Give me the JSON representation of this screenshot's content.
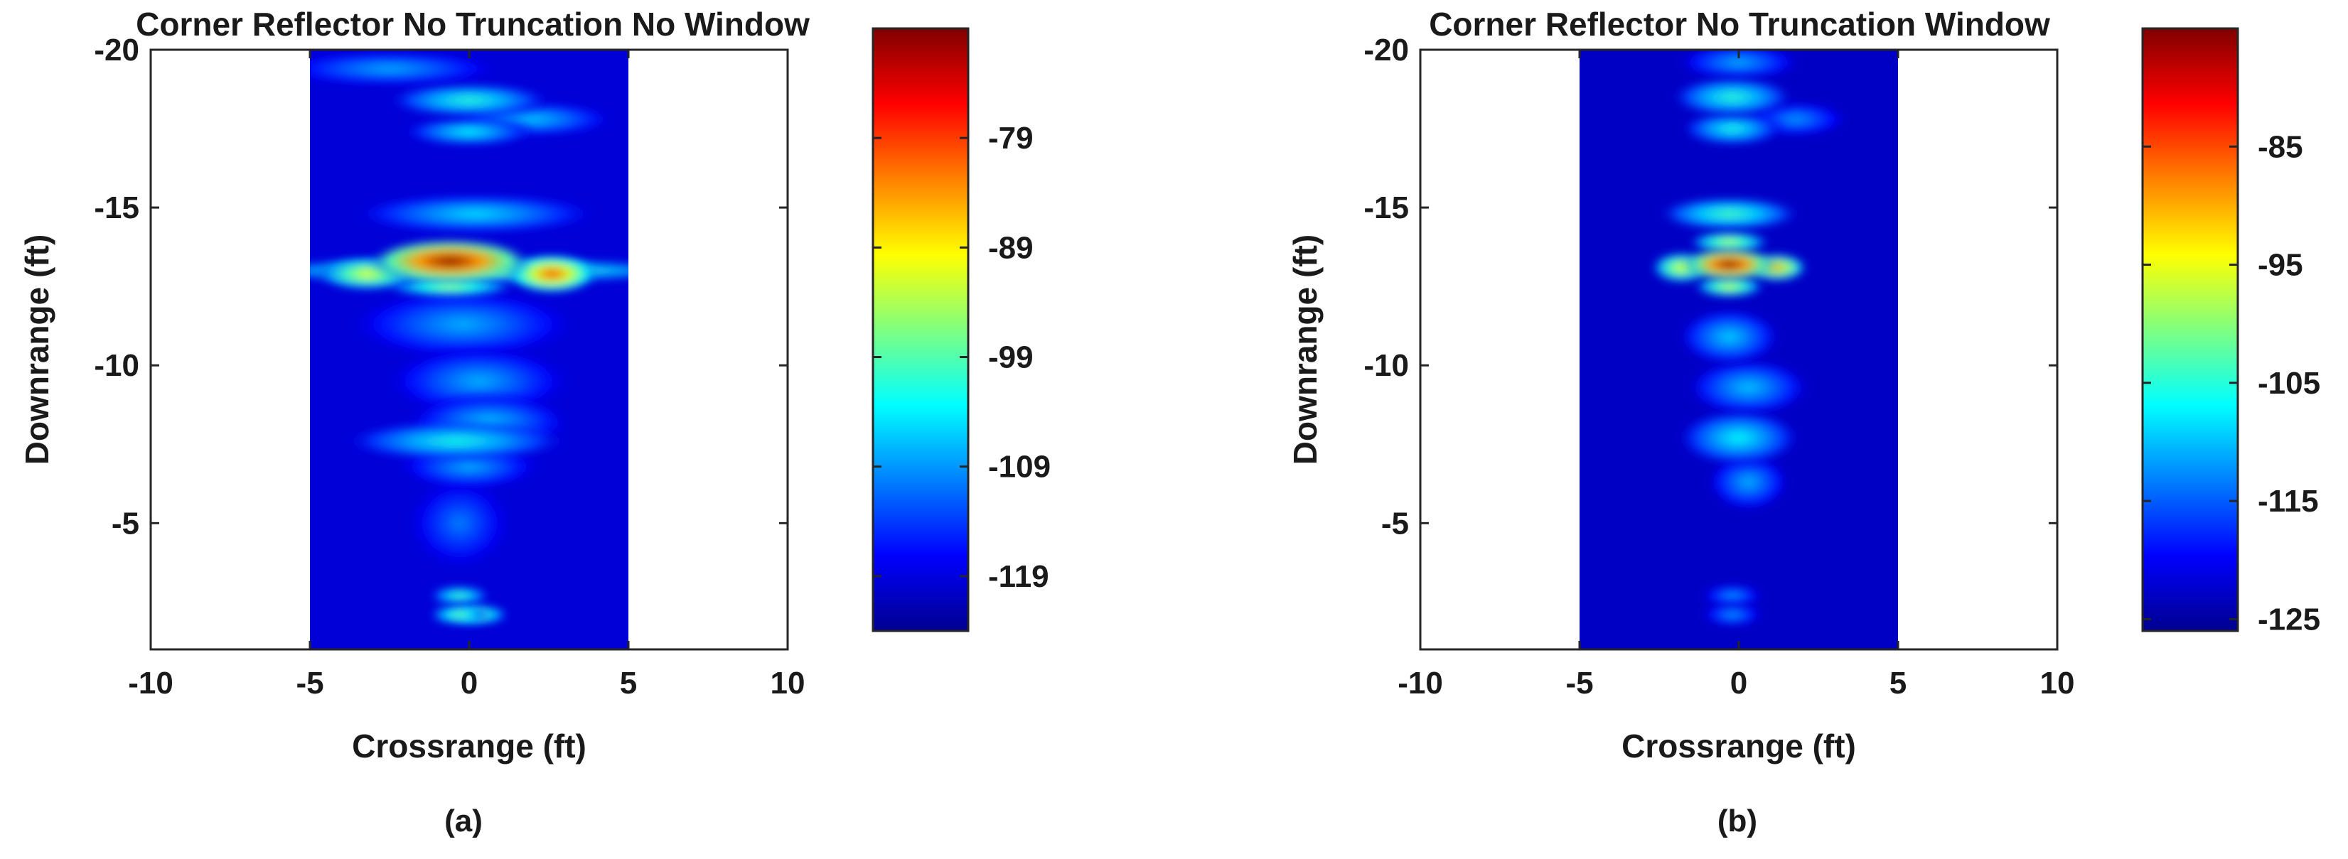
{
  "colormap": [
    "#00008f",
    "#0000ff",
    "#0080ff",
    "#00ffff",
    "#80ff80",
    "#ffff00",
    "#ff8000",
    "#ff0000",
    "#800000"
  ],
  "chart_data": [
    {
      "type": "heatmap",
      "caption": "(a)",
      "title": "Corner Reflector No Truncation No Window",
      "xlabel": "Crossrange (ft)",
      "ylabel": "Downrange (ft)",
      "xlim": [
        -10,
        10
      ],
      "ylim": [
        -20,
        -1
      ],
      "y_reversed": true,
      "xticks": [
        "-10",
        "-5",
        "0",
        "5",
        "10"
      ],
      "yticks": [
        "-20",
        "-15",
        "-10",
        "-5"
      ],
      "data_extent_x": [
        -5,
        5
      ],
      "background_level": 0.08,
      "blobs": [
        {
          "x": -0.6,
          "y": -13.3,
          "sx": 1.6,
          "sy": 0.4,
          "v": 1.0
        },
        {
          "x": 2.6,
          "y": -12.9,
          "sx": 0.9,
          "sy": 0.35,
          "v": 0.82
        },
        {
          "x": -3.2,
          "y": -12.9,
          "sx": 1.0,
          "sy": 0.3,
          "v": 0.62
        },
        {
          "x": 0.0,
          "y": -13.0,
          "sx": 4.6,
          "sy": 0.22,
          "v": 0.55
        },
        {
          "x": -0.6,
          "y": -12.5,
          "sx": 1.3,
          "sy": 0.2,
          "v": 0.55
        },
        {
          "x": 0.0,
          "y": -18.4,
          "sx": 1.6,
          "sy": 0.3,
          "v": 0.42
        },
        {
          "x": 0.0,
          "y": -17.4,
          "sx": 1.3,
          "sy": 0.25,
          "v": 0.38
        },
        {
          "x": 2.0,
          "y": -17.8,
          "sx": 1.6,
          "sy": 0.3,
          "v": 0.33
        },
        {
          "x": -2.5,
          "y": -19.4,
          "sx": 2.2,
          "sy": 0.3,
          "v": 0.3
        },
        {
          "x": 0.2,
          "y": -14.8,
          "sx": 2.4,
          "sy": 0.35,
          "v": 0.35
        },
        {
          "x": -0.2,
          "y": -11.3,
          "sx": 2.2,
          "sy": 0.6,
          "v": 0.3
        },
        {
          "x": 0.3,
          "y": -9.5,
          "sx": 1.8,
          "sy": 0.6,
          "v": 0.3
        },
        {
          "x": -0.4,
          "y": -7.6,
          "sx": 2.2,
          "sy": 0.35,
          "v": 0.4
        },
        {
          "x": 0.6,
          "y": -8.2,
          "sx": 1.6,
          "sy": 0.5,
          "v": 0.32
        },
        {
          "x": 0.0,
          "y": -6.8,
          "sx": 1.4,
          "sy": 0.4,
          "v": 0.3
        },
        {
          "x": -0.3,
          "y": -5.0,
          "sx": 1.0,
          "sy": 0.8,
          "v": 0.25
        },
        {
          "x": -0.3,
          "y": -2.7,
          "sx": 0.6,
          "sy": 0.18,
          "v": 0.45
        },
        {
          "x": 0.3,
          "y": -2.1,
          "sx": 0.6,
          "sy": 0.18,
          "v": 0.5
        },
        {
          "x": -0.3,
          "y": -2.1,
          "sx": 0.6,
          "sy": 0.18,
          "v": 0.5
        }
      ],
      "colorbar": {
        "ticks": [
          "-79",
          "-89",
          "-99",
          "-109",
          "-119"
        ],
        "range": [
          -124,
          -69
        ]
      }
    },
    {
      "type": "heatmap",
      "caption": "(b)",
      "title": "Corner Reflector No Truncation Window",
      "xlabel": "Crossrange (ft)",
      "ylabel": "Downrange (ft)",
      "xlim": [
        -10,
        10
      ],
      "ylim": [
        -20,
        -1
      ],
      "y_reversed": true,
      "xticks": [
        "-10",
        "-5",
        "0",
        "5",
        "10"
      ],
      "yticks": [
        "-20",
        "-15",
        "-10",
        "-5"
      ],
      "data_extent_x": [
        -5,
        5
      ],
      "background_level": 0.06,
      "blobs": [
        {
          "x": -0.3,
          "y": -13.2,
          "sx": 0.9,
          "sy": 0.3,
          "v": 1.0
        },
        {
          "x": 1.2,
          "y": -13.1,
          "sx": 0.6,
          "sy": 0.25,
          "v": 0.72
        },
        {
          "x": -1.8,
          "y": -13.1,
          "sx": 0.6,
          "sy": 0.28,
          "v": 0.62
        },
        {
          "x": -0.3,
          "y": -12.5,
          "sx": 0.7,
          "sy": 0.2,
          "v": 0.6
        },
        {
          "x": -0.3,
          "y": -13.9,
          "sx": 0.8,
          "sy": 0.2,
          "v": 0.58
        },
        {
          "x": -0.3,
          "y": -14.8,
          "sx": 1.4,
          "sy": 0.3,
          "v": 0.45
        },
        {
          "x": -0.2,
          "y": -18.5,
          "sx": 1.2,
          "sy": 0.35,
          "v": 0.42
        },
        {
          "x": -0.2,
          "y": -17.5,
          "sx": 1.0,
          "sy": 0.3,
          "v": 0.4
        },
        {
          "x": 1.8,
          "y": -17.8,
          "sx": 1.0,
          "sy": 0.3,
          "v": 0.28
        },
        {
          "x": 0.0,
          "y": -19.6,
          "sx": 1.2,
          "sy": 0.3,
          "v": 0.3
        },
        {
          "x": -0.3,
          "y": -10.9,
          "sx": 1.0,
          "sy": 0.5,
          "v": 0.33
        },
        {
          "x": 0.3,
          "y": -9.3,
          "sx": 1.2,
          "sy": 0.5,
          "v": 0.32
        },
        {
          "x": 0.0,
          "y": -7.7,
          "sx": 1.2,
          "sy": 0.5,
          "v": 0.38
        },
        {
          "x": 0.3,
          "y": -6.3,
          "sx": 0.8,
          "sy": 0.5,
          "v": 0.3
        },
        {
          "x": -0.2,
          "y": -2.7,
          "sx": 0.6,
          "sy": 0.2,
          "v": 0.28
        },
        {
          "x": -0.2,
          "y": -2.1,
          "sx": 0.6,
          "sy": 0.2,
          "v": 0.28
        }
      ],
      "colorbar": {
        "ticks": [
          "-85",
          "-95",
          "-105",
          "-115",
          "-125"
        ],
        "range": [
          -126,
          -75
        ]
      }
    }
  ]
}
